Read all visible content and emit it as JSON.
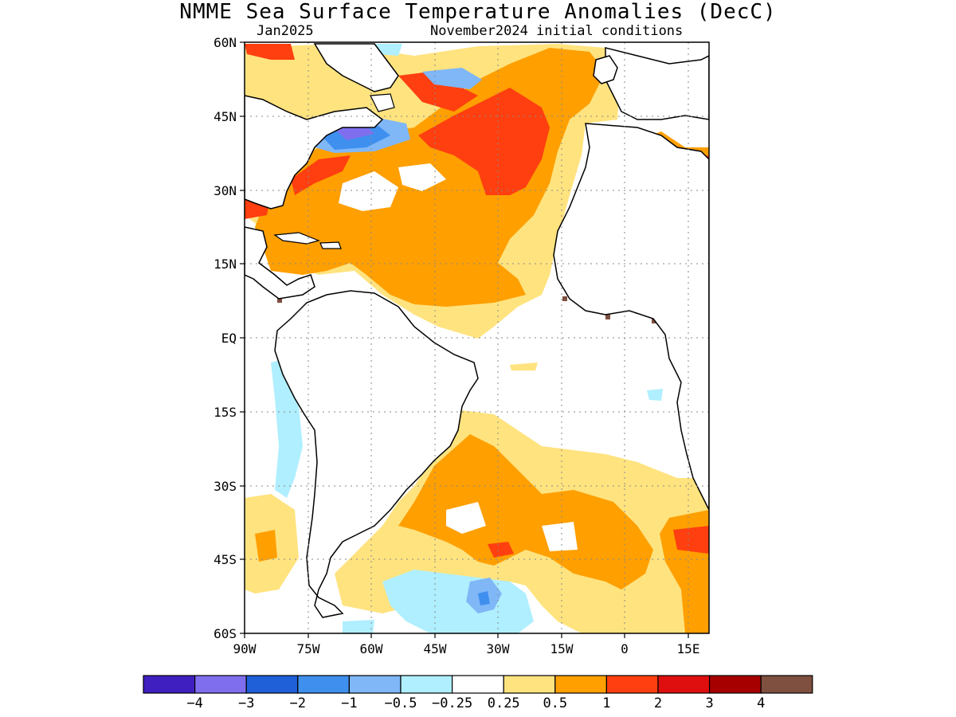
{
  "title": "NMME Sea Surface Temperature Anomalies (DecC)",
  "valid_month": "Jan2025",
  "initial_conditions": "November2024 initial conditions",
  "map": {
    "lat_labels": [
      "60N",
      "45N",
      "30N",
      "15N",
      "EQ",
      "15S",
      "30S",
      "45S",
      "60S"
    ],
    "lon_labels": [
      "90W",
      "75W",
      "60W",
      "45W",
      "30W",
      "15W",
      "0",
      "15E"
    ],
    "lat_range": [
      -60,
      60
    ],
    "lon_range": [
      -90,
      20
    ]
  },
  "legend": {
    "colors": [
      "#3f1fbf",
      "#7f6fef",
      "#1f5fd7",
      "#3f8fef",
      "#7fb7f7",
      "#afefff",
      "#ffffff",
      "#ffe37f",
      "#ff9f00",
      "#ff3f0f",
      "#df0f0f",
      "#a70000",
      "#7f4f3f"
    ],
    "labels": [
      "−4",
      "−3",
      "−2",
      "−1",
      "−0.5",
      "−0.25",
      "0.25",
      "0.5",
      "1",
      "2",
      "3",
      "4"
    ]
  }
}
